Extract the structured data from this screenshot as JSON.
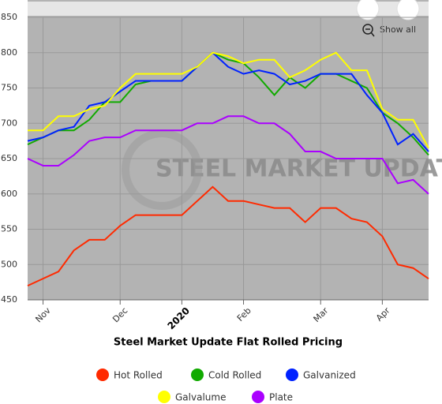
{
  "chart_data": {
    "type": "line",
    "title": "Steel Market Update Flat Rolled Pricing",
    "watermark": "STEEL MARKET UPDATE",
    "reset_button": "Show all",
    "categories": [
      null,
      "Nov",
      null,
      null,
      null,
      null,
      "Dec",
      null,
      null,
      null,
      "2020",
      null,
      null,
      null,
      "Feb",
      null,
      null,
      null,
      null,
      "Mar",
      null,
      null,
      null,
      "Apr",
      null,
      null,
      null
    ],
    "ylim": [
      450,
      850
    ],
    "yticks": [
      450,
      500,
      550,
      600,
      650,
      700,
      750,
      800,
      850
    ],
    "grid": true,
    "legend": "bottom",
    "series": [
      {
        "name": "Hot Rolled",
        "color": "#ff2a00",
        "values": [
          470,
          480,
          490,
          520,
          535,
          535,
          555,
          570,
          570,
          570,
          570,
          590,
          610,
          590,
          590,
          585,
          580,
          580,
          560,
          580,
          580,
          565,
          560,
          540,
          500,
          495,
          480
        ]
      },
      {
        "name": "Cold Rolled",
        "color": "#11aa00",
        "values": [
          670,
          680,
          690,
          690,
          705,
          730,
          730,
          755,
          760,
          760,
          760,
          780,
          800,
          790,
          785,
          765,
          740,
          765,
          750,
          770,
          770,
          760,
          750,
          715,
          700,
          680,
          655
        ]
      },
      {
        "name": "Galvanized",
        "color": "#0022ff",
        "values": [
          675,
          680,
          690,
          695,
          725,
          730,
          745,
          760,
          760,
          760,
          760,
          780,
          800,
          780,
          770,
          775,
          770,
          755,
          760,
          770,
          770,
          770,
          740,
          715,
          670,
          685,
          660
        ]
      },
      {
        "name": "Galvalume",
        "color": "#ffff00",
        "values": [
          690,
          690,
          710,
          710,
          720,
          725,
          750,
          770,
          770,
          770,
          770,
          780,
          800,
          795,
          785,
          790,
          790,
          765,
          775,
          790,
          800,
          775,
          775,
          720,
          705,
          705,
          665
        ]
      },
      {
        "name": "Plate",
        "color": "#aa00ff",
        "values": [
          650,
          640,
          640,
          655,
          675,
          680,
          680,
          690,
          690,
          690,
          690,
          700,
          700,
          710,
          710,
          700,
          700,
          685,
          660,
          660,
          650,
          650,
          650,
          650,
          615,
          620,
          600
        ]
      }
    ]
  }
}
